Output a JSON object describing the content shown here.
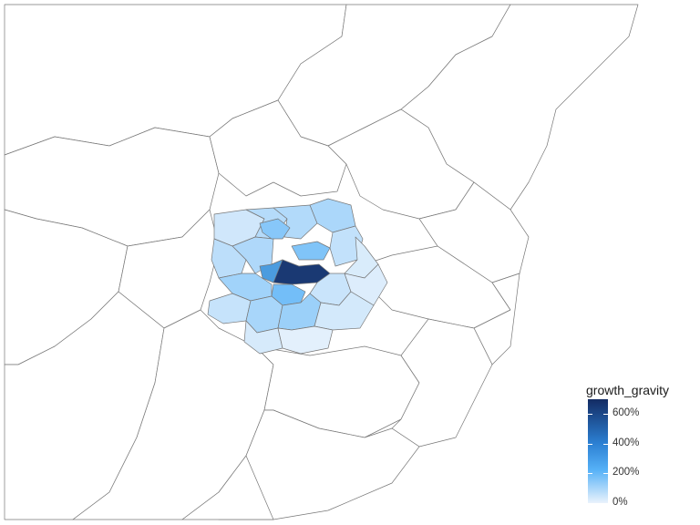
{
  "legend": {
    "title": "growth_gravity",
    "scale_max_percent": 700,
    "ticks": [
      {
        "label": "0%",
        "value": 0
      },
      {
        "label": "200%",
        "value": 200
      },
      {
        "label": "400%",
        "value": 400
      },
      {
        "label": "600%",
        "value": 600
      }
    ],
    "colors": {
      "low": "#eaf3fc",
      "mid": "#56b1f7",
      "high": "#132b63",
      "unfilled": "#ffffff",
      "border": "#777777"
    }
  },
  "map": {
    "regions_filled_percent": [
      650,
      300,
      180,
      160,
      150,
      120,
      110,
      100,
      95,
      90,
      85,
      80,
      70,
      60,
      55,
      50,
      40,
      35,
      30,
      25,
      20,
      10
    ]
  }
}
